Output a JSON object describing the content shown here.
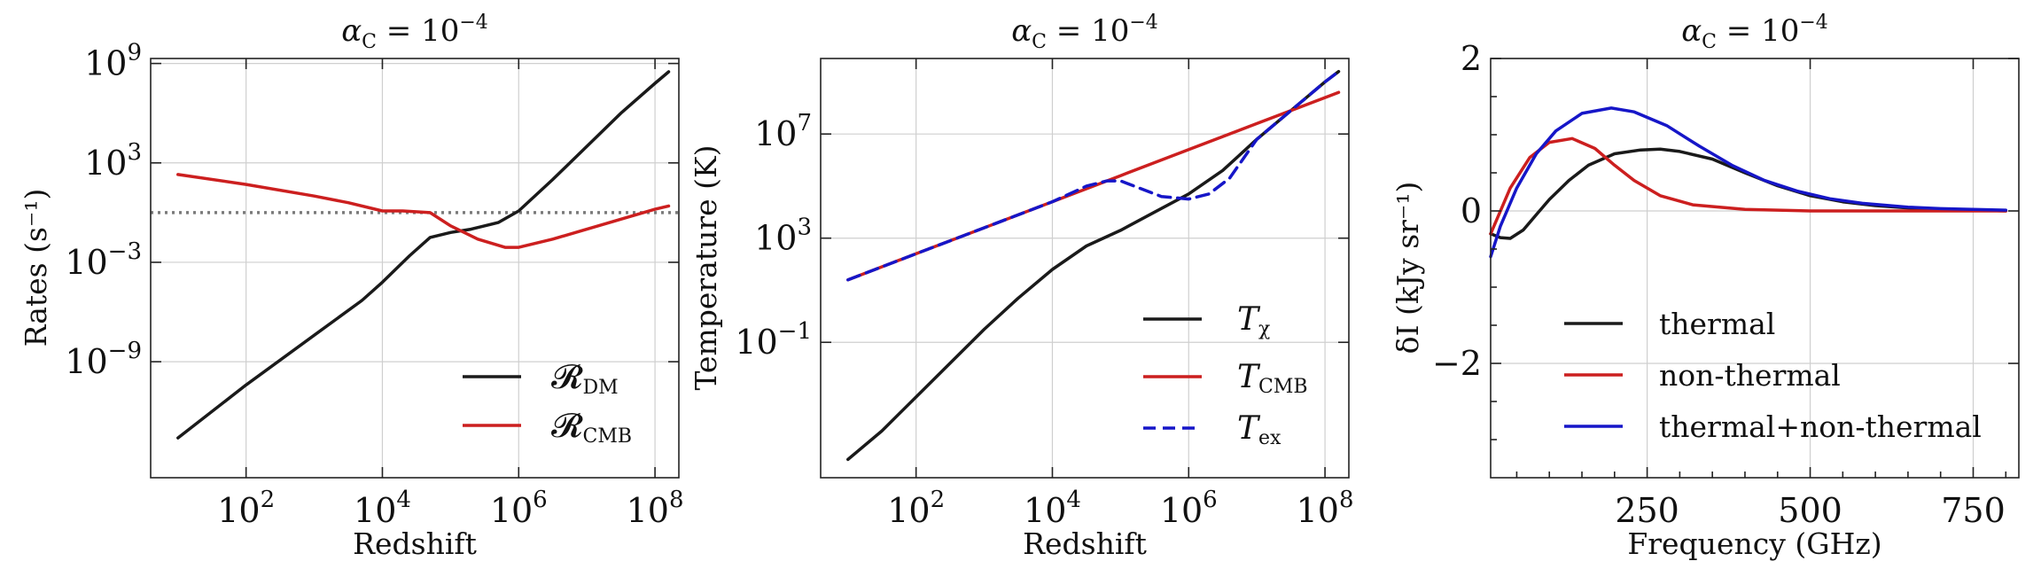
{
  "chart_data": [
    {
      "type": "line",
      "title": "α_C = 10^−4",
      "title_main": "α",
      "title_sub": "C",
      "title_mid": " = 10",
      "title_sup": "−4",
      "xlabel": "Redshift",
      "ylabel": "Rates (s⁻¹)",
      "xscale": "log",
      "yscale": "log",
      "xlim_log10": [
        0.6,
        8.35
      ],
      "ylim_log10": [
        -16.0,
        9.3
      ],
      "xticks": [
        {
          "label": "10",
          "exp": "2",
          "v": 2
        },
        {
          "label": "10",
          "exp": "4",
          "v": 4
        },
        {
          "label": "10",
          "exp": "6",
          "v": 6
        },
        {
          "label": "10",
          "exp": "8",
          "v": 8
        }
      ],
      "yticks": [
        {
          "label": "10",
          "exp": "9",
          "v": 9
        },
        {
          "label": "10",
          "exp": "3",
          "v": 3
        },
        {
          "label": "10",
          "exp": "−3",
          "v": -3
        },
        {
          "label": "10",
          "exp": "−9",
          "v": -9
        }
      ],
      "hline": {
        "y_log10": 0.0,
        "style": "dotted",
        "color": "#7a7a7a"
      },
      "legend_loc": "lower right",
      "series": [
        {
          "name": "R_DM",
          "label_main": "𝓡",
          "label_sub": "DM",
          "color": "#1a1a1a",
          "dash": "",
          "points_log10": [
            [
              1.0,
              -13.6
            ],
            [
              2.0,
              -10.4
            ],
            [
              3.0,
              -7.4
            ],
            [
              3.7,
              -5.3
            ],
            [
              4.0,
              -4.2
            ],
            [
              4.4,
              -2.6
            ],
            [
              4.7,
              -1.5
            ],
            [
              5.0,
              -1.2
            ],
            [
              5.3,
              -1.0
            ],
            [
              5.7,
              -0.6
            ],
            [
              6.0,
              0.1
            ],
            [
              6.5,
              2.0
            ],
            [
              7.0,
              4.0
            ],
            [
              7.5,
              6.0
            ],
            [
              8.0,
              7.8
            ],
            [
              8.2,
              8.5
            ]
          ]
        },
        {
          "name": "R_CMB",
          "label_main": "𝓡",
          "label_sub": "CMB",
          "color": "#cc1f1f",
          "dash": "",
          "points_log10": [
            [
              1.0,
              2.3
            ],
            [
              2.0,
              1.7
            ],
            [
              3.0,
              1.0
            ],
            [
              3.5,
              0.6
            ],
            [
              4.0,
              0.1
            ],
            [
              4.3,
              0.1
            ],
            [
              4.7,
              0.0
            ],
            [
              5.0,
              -0.8
            ],
            [
              5.4,
              -1.6
            ],
            [
              5.8,
              -2.1
            ],
            [
              6.0,
              -2.1
            ],
            [
              6.5,
              -1.6
            ],
            [
              7.0,
              -1.0
            ],
            [
              7.5,
              -0.4
            ],
            [
              8.0,
              0.2
            ],
            [
              8.2,
              0.4
            ]
          ]
        }
      ]
    },
    {
      "type": "line",
      "title": "α_C = 10^−4",
      "title_main": "α",
      "title_sub": "C",
      "title_mid": " = 10",
      "title_sup": "−4",
      "xlabel": "Redshift",
      "ylabel": "Temperature (K)",
      "xscale": "log",
      "yscale": "log",
      "xlim_log10": [
        0.6,
        8.35
      ],
      "ylim_log10": [
        -6.2,
        9.9
      ],
      "xticks": [
        {
          "label": "10",
          "exp": "2",
          "v": 2
        },
        {
          "label": "10",
          "exp": "4",
          "v": 4
        },
        {
          "label": "10",
          "exp": "6",
          "v": 6
        },
        {
          "label": "10",
          "exp": "8",
          "v": 8
        }
      ],
      "yticks": [
        {
          "label": "10",
          "exp": "7",
          "v": 7
        },
        {
          "label": "10",
          "exp": "3",
          "v": 3
        },
        {
          "label": "10",
          "exp": "−1",
          "v": -1
        }
      ],
      "legend_loc": "lower right",
      "series": [
        {
          "name": "T_chi",
          "label_main": "T",
          "label_sub": "χ",
          "color": "#1a1a1a",
          "dash": "",
          "points_log10": [
            [
              1.0,
              -5.5
            ],
            [
              1.5,
              -4.4
            ],
            [
              2.0,
              -3.1
            ],
            [
              3.0,
              -0.5
            ],
            [
              3.5,
              0.7
            ],
            [
              4.0,
              1.8
            ],
            [
              4.5,
              2.7
            ],
            [
              5.0,
              3.3
            ],
            [
              5.5,
              4.0
            ],
            [
              6.0,
              4.7
            ],
            [
              6.5,
              5.6
            ],
            [
              7.0,
              6.8
            ],
            [
              7.5,
              7.9
            ],
            [
              8.0,
              9.0
            ],
            [
              8.2,
              9.4
            ]
          ]
        },
        {
          "name": "T_CMB",
          "label_main": "T",
          "label_sub": "CMB",
          "color": "#cc1f1f",
          "dash": "",
          "points_log10": [
            [
              1.0,
              1.4
            ],
            [
              2.0,
              2.4
            ],
            [
              3.0,
              3.4
            ],
            [
              4.0,
              4.4
            ],
            [
              5.0,
              5.4
            ],
            [
              6.0,
              6.4
            ],
            [
              7.0,
              7.4
            ],
            [
              8.0,
              8.4
            ],
            [
              8.2,
              8.6
            ]
          ]
        },
        {
          "name": "T_ex",
          "label_main": "T",
          "label_sub": "ex",
          "color": "#1616c8",
          "dash": "14,8",
          "points_log10": [
            [
              1.0,
              1.4
            ],
            [
              2.0,
              2.4
            ],
            [
              3.0,
              3.4
            ],
            [
              4.0,
              4.4
            ],
            [
              4.5,
              5.0
            ],
            [
              4.8,
              5.2
            ],
            [
              5.0,
              5.2
            ],
            [
              5.3,
              4.9
            ],
            [
              5.6,
              4.6
            ],
            [
              6.0,
              4.5
            ],
            [
              6.3,
              4.7
            ],
            [
              6.6,
              5.3
            ],
            [
              7.0,
              6.8
            ],
            [
              7.5,
              7.9
            ],
            [
              8.0,
              9.0
            ],
            [
              8.2,
              9.4
            ]
          ]
        }
      ]
    },
    {
      "type": "line",
      "title": "α_C = 10^−4",
      "title_main": "α",
      "title_sub": "C",
      "title_mid": " = 10",
      "title_sup": "−4",
      "xlabel": "Frequency (GHz)",
      "ylabel": "δI (kJy sr⁻¹)",
      "xscale": "linear",
      "yscale": "linear",
      "xlim": [
        10,
        820
      ],
      "ylim": [
        -3.5,
        2.0
      ],
      "xticks": [
        {
          "label": "250",
          "v": 250
        },
        {
          "label": "500",
          "v": 500
        },
        {
          "label": "750",
          "v": 750
        }
      ],
      "yticks": [
        {
          "label": "2",
          "v": 2
        },
        {
          "label": "0",
          "v": 0
        },
        {
          "label": "−2",
          "v": -2
        }
      ],
      "legend_loc": "lower left",
      "series": [
        {
          "name": "thermal",
          "color": "#1a1a1a",
          "dash": "",
          "points": [
            [
              10,
              -0.3
            ],
            [
              25,
              -0.35
            ],
            [
              40,
              -0.36
            ],
            [
              60,
              -0.25
            ],
            [
              80,
              -0.05
            ],
            [
              100,
              0.15
            ],
            [
              130,
              0.4
            ],
            [
              160,
              0.6
            ],
            [
              200,
              0.75
            ],
            [
              240,
              0.8
            ],
            [
              270,
              0.81
            ],
            [
              300,
              0.78
            ],
            [
              350,
              0.68
            ],
            [
              400,
              0.5
            ],
            [
              450,
              0.33
            ],
            [
              500,
              0.2
            ],
            [
              550,
              0.12
            ],
            [
              600,
              0.07
            ],
            [
              650,
              0.04
            ],
            [
              700,
              0.02
            ],
            [
              750,
              0.01
            ],
            [
              800,
              0.0
            ]
          ]
        },
        {
          "name": "non-thermal",
          "color": "#cc1f1f",
          "dash": "",
          "points": [
            [
              10,
              -0.3
            ],
            [
              20,
              -0.1
            ],
            [
              40,
              0.3
            ],
            [
              70,
              0.7
            ],
            [
              100,
              0.9
            ],
            [
              135,
              0.95
            ],
            [
              170,
              0.82
            ],
            [
              200,
              0.6
            ],
            [
              230,
              0.4
            ],
            [
              270,
              0.2
            ],
            [
              320,
              0.08
            ],
            [
              400,
              0.02
            ],
            [
              500,
              0.0
            ],
            [
              800,
              0.0
            ]
          ]
        },
        {
          "name": "thermal+non-thermal",
          "color": "#1616c8",
          "dash": "",
          "points": [
            [
              10,
              -0.6
            ],
            [
              25,
              -0.2
            ],
            [
              50,
              0.3
            ],
            [
              80,
              0.75
            ],
            [
              110,
              1.05
            ],
            [
              150,
              1.28
            ],
            [
              195,
              1.35
            ],
            [
              230,
              1.3
            ],
            [
              280,
              1.12
            ],
            [
              330,
              0.85
            ],
            [
              380,
              0.6
            ],
            [
              430,
              0.4
            ],
            [
              480,
              0.26
            ],
            [
              530,
              0.16
            ],
            [
              580,
              0.1
            ],
            [
              650,
              0.05
            ],
            [
              700,
              0.03
            ],
            [
              750,
              0.02
            ],
            [
              800,
              0.01
            ]
          ]
        }
      ]
    }
  ]
}
